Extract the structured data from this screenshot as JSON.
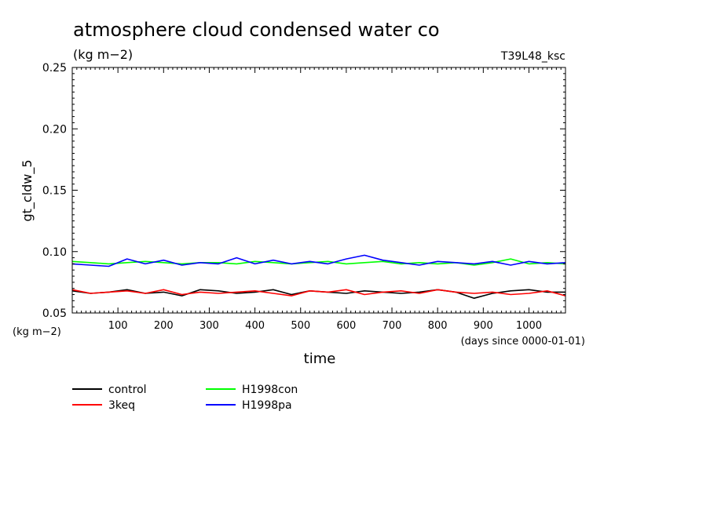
{
  "chart_data": {
    "type": "line",
    "title": "atmosphere cloud condensed water co",
    "subtitle": "(kg m−2)",
    "run_label": "T39L48_ksc",
    "ylabel": "gt_cldw_5",
    "y_unit_label": "(kg m−2)",
    "xlabel": "time",
    "x_unit_label": "(days since 0000-01-01)",
    "xlim": [
      0,
      1080
    ],
    "ylim": [
      0.05,
      0.25
    ],
    "x_ticks": [
      100,
      200,
      300,
      400,
      500,
      600,
      700,
      800,
      900,
      1000
    ],
    "y_ticks": [
      "0.05",
      "0.10",
      "0.15",
      "0.20",
      "0.25"
    ],
    "grid": false,
    "legend_position": "bottom-left",
    "x": [
      0,
      40,
      80,
      120,
      160,
      200,
      240,
      280,
      320,
      360,
      400,
      440,
      480,
      520,
      560,
      600,
      640,
      680,
      720,
      760,
      800,
      840,
      880,
      920,
      960,
      1000,
      1040,
      1080
    ],
    "series": [
      {
        "name": "control",
        "color": "#000000",
        "values": [
          0.068,
          0.066,
          0.067,
          0.069,
          0.066,
          0.067,
          0.064,
          0.069,
          0.068,
          0.066,
          0.067,
          0.069,
          0.065,
          0.068,
          0.067,
          0.066,
          0.068,
          0.067,
          0.066,
          0.067,
          0.069,
          0.067,
          0.062,
          0.066,
          0.068,
          0.069,
          0.067,
          0.067
        ]
      },
      {
        "name": "3keq",
        "color": "#ff0000",
        "values": [
          0.069,
          0.066,
          0.067,
          0.068,
          0.066,
          0.069,
          0.065,
          0.067,
          0.066,
          0.067,
          0.068,
          0.066,
          0.064,
          0.068,
          0.067,
          0.069,
          0.065,
          0.067,
          0.068,
          0.066,
          0.069,
          0.067,
          0.066,
          0.067,
          0.065,
          0.066,
          0.068,
          0.064
        ]
      },
      {
        "name": "H1998con",
        "color": "#00ff00",
        "values": [
          0.092,
          0.091,
          0.09,
          0.091,
          0.092,
          0.091,
          0.09,
          0.091,
          0.091,
          0.09,
          0.092,
          0.091,
          0.09,
          0.091,
          0.092,
          0.09,
          0.091,
          0.092,
          0.09,
          0.091,
          0.09,
          0.091,
          0.089,
          0.091,
          0.094,
          0.09,
          0.091,
          0.09
        ]
      },
      {
        "name": "H1998pa",
        "color": "#0000ff",
        "values": [
          0.09,
          0.089,
          0.088,
          0.094,
          0.09,
          0.093,
          0.089,
          0.091,
          0.09,
          0.095,
          0.09,
          0.093,
          0.09,
          0.092,
          0.09,
          0.094,
          0.097,
          0.093,
          0.091,
          0.089,
          0.092,
          0.091,
          0.09,
          0.092,
          0.089,
          0.092,
          0.09,
          0.091
        ]
      }
    ]
  }
}
